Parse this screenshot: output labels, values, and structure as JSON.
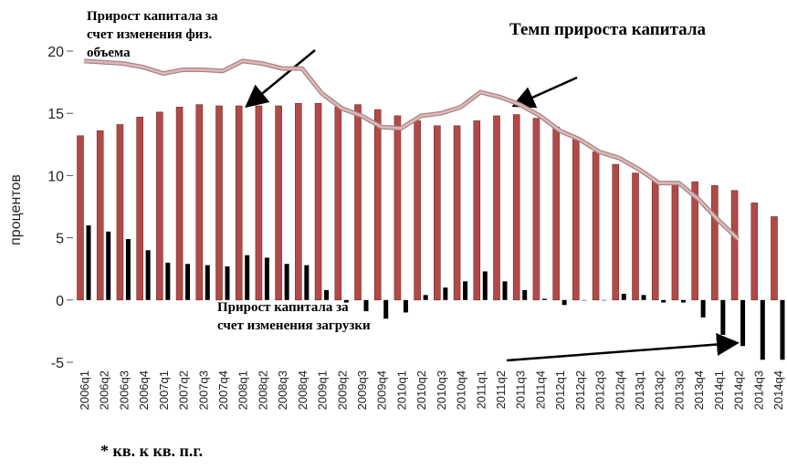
{
  "chart_data": {
    "type": "bar_line",
    "y_label": "процентов",
    "footnote": "* кв. к кв. п.г.",
    "categories": [
      "2006q1",
      "2006q2",
      "2006q3",
      "2006q4",
      "2007q1",
      "2007q2",
      "2007q3",
      "2007q4",
      "2008q1",
      "2008q2",
      "2008q3",
      "2008q4",
      "2009q1",
      "2009q2",
      "2009q3",
      "2009q4",
      "2010q1",
      "2010q2",
      "2010q3",
      "2010q4",
      "2011q1",
      "2011q2",
      "2011q3",
      "2011q4",
      "2012q1",
      "2012q2",
      "2012q3",
      "2012q4",
      "2013q1",
      "2013q2",
      "2013q3",
      "2013q4",
      "2014q1",
      "2014q2",
      "2014q3",
      "2014q4"
    ],
    "series": [
      {
        "kind": "bar",
        "color": "#b04a48",
        "values": [
          13.2,
          13.6,
          14.1,
          14.7,
          15.1,
          15.5,
          15.7,
          15.6,
          15.6,
          15.6,
          15.6,
          15.8,
          15.8,
          15.5,
          15.7,
          15.3,
          14.8,
          14.4,
          14.0,
          14.0,
          14.4,
          14.8,
          14.9,
          14.6,
          13.9,
          12.9,
          11.9,
          10.9,
          10.2,
          9.5,
          9.4,
          9.5,
          9.2,
          8.8,
          7.8,
          6.7
        ]
      },
      {
        "kind": "bar",
        "color": "#000000",
        "values": [
          6.0,
          5.5,
          4.9,
          4.0,
          3.0,
          2.9,
          2.8,
          2.7,
          3.6,
          3.4,
          2.9,
          2.8,
          0.8,
          -0.2,
          -0.9,
          -1.5,
          -1.0,
          0.4,
          1.0,
          1.5,
          2.3,
          1.5,
          0.8,
          0.1,
          -0.4,
          0.0,
          0.0,
          0.5,
          0.4,
          -0.2,
          -0.2,
          -1.4,
          -2.8,
          -3.7,
          -4.8,
          -4.8
        ]
      },
      {
        "kind": "line",
        "color": "#e8b4b4",
        "values": [
          19.2,
          19.1,
          19.0,
          18.7,
          18.2,
          18.5,
          18.5,
          18.4,
          19.2,
          19.0,
          18.6,
          18.6,
          16.6,
          15.4,
          14.8,
          13.9,
          13.8,
          14.8,
          15.0,
          15.5,
          16.7,
          16.3,
          15.7,
          14.8,
          13.6,
          12.9,
          11.9,
          11.4,
          10.5,
          9.4,
          9.4,
          8.1,
          6.4,
          4.9,
          null,
          null
        ]
      }
    ],
    "annotations": [
      {
        "lines": [
          "Прирост капитала за",
          "счет изменения физ.",
          "объема"
        ]
      },
      {
        "lines": [
          "Темп прироста капитала"
        ]
      },
      {
        "lines": [
          "Прирост капитала за",
          "счет изменения загрузки"
        ]
      }
    ],
    "ylim": [
      -5,
      20
    ],
    "yticks": [
      -5,
      0,
      5,
      10,
      15,
      20
    ]
  }
}
